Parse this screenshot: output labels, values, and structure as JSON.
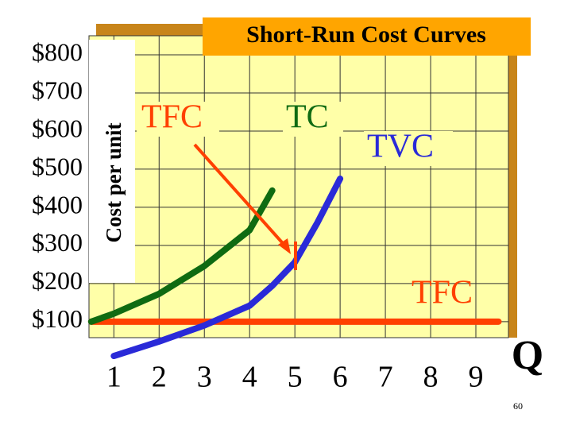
{
  "chart_data": {
    "type": "line",
    "title": "Short-Run Cost Curves",
    "y_label": "Cost per unit",
    "x_label": "Q",
    "x": [
      0.5,
      1,
      2,
      3,
      4,
      4.5,
      5,
      5.5,
      6,
      9.5
    ],
    "series": [
      {
        "name": "TFC",
        "color": "#ff4000",
        "values": [
          100,
          100,
          100,
          100,
          100,
          100,
          100,
          100,
          100,
          100
        ]
      },
      {
        "name": "TC",
        "color": "#0f6b12",
        "values": [
          100,
          121,
          173,
          246,
          340,
          444,
          null,
          null,
          null,
          null
        ]
      },
      {
        "name": "TVC",
        "color": "#2a2ad8",
        "values": [
          null,
          10,
          48,
          90,
          142,
          194,
          256,
          360,
          475,
          null
        ]
      }
    ],
    "xlim": [
      0.45,
      9.72
    ],
    "ylim": [
      58,
      850
    ],
    "xticks": [
      1,
      2,
      3,
      4,
      5,
      6,
      7,
      8,
      9
    ],
    "yticks": [
      {
        "value": 100,
        "label": "$100"
      },
      {
        "value": 200,
        "label": "$200"
      },
      {
        "value": 300,
        "label": "$300"
      },
      {
        "value": 400,
        "label": "$400"
      },
      {
        "value": 500,
        "label": "$500"
      },
      {
        "value": 600,
        "label": "$600"
      },
      {
        "value": 700,
        "label": "$700"
      },
      {
        "value": 800,
        "label": "$800"
      }
    ],
    "grid": true,
    "annotations": [
      "TFC",
      "TC",
      "TVC",
      "TFC"
    ],
    "page_number": "60"
  }
}
